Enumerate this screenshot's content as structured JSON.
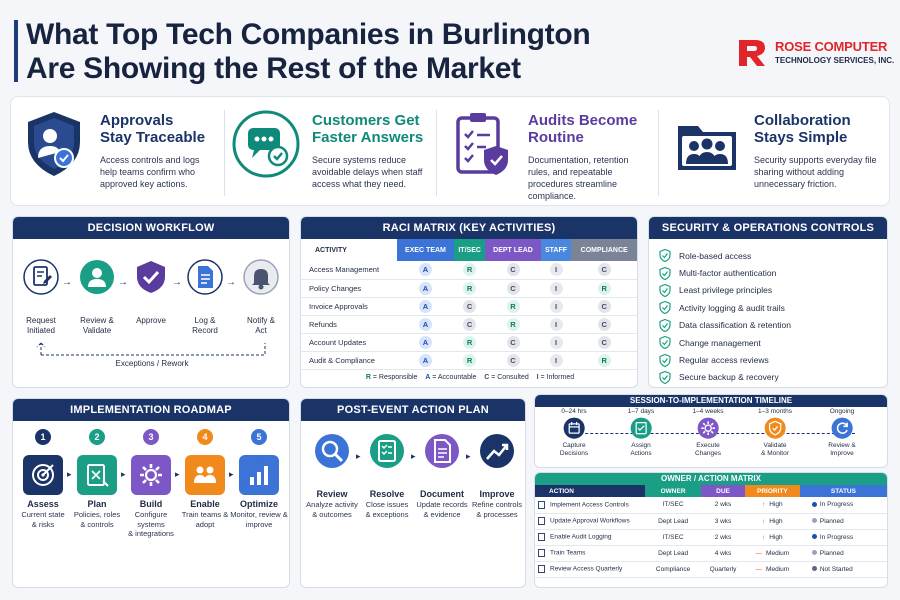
{
  "header": {
    "title_line1": "What Top Tech Companies in Burlington",
    "title_line2": "Are Showing the Rest of the Market",
    "logo_name": "ROSE COMPUTER",
    "logo_sub": "TECHNOLOGY SERVICES, INC."
  },
  "benefits": [
    {
      "title1": "Approvals",
      "title2": "Stay Traceable",
      "body": "Access controls and logs help teams confirm who approved key actions.",
      "color": "#1b3468",
      "icon": "shield-user-icon"
    },
    {
      "title1": "Customers Get",
      "title2": "Faster Answers",
      "body": "Secure systems reduce avoidable delays when staff access what they need.",
      "color": "#0f8a7a",
      "icon": "chat-check-icon"
    },
    {
      "title1": "Audits Become",
      "title2": "Routine",
      "body": "Documentation, retention rules, and repeatable procedures streamline compliance.",
      "color": "#5a3c9e",
      "icon": "clipboard-shield-icon"
    },
    {
      "title1": "Collaboration",
      "title2": "Stays Simple",
      "body": "Security supports everyday file sharing without adding unnecessary friction.",
      "color": "#1b3468",
      "icon": "folder-team-icon"
    }
  ],
  "workflow": {
    "title": "DECISION WORKFLOW",
    "steps": [
      {
        "l1": "Request",
        "l2": "Initiated",
        "icon": "document-edit-icon"
      },
      {
        "l1": "Review &",
        "l2": "Validate",
        "icon": "user-icon"
      },
      {
        "l1": "Approve",
        "l2": "",
        "icon": "shield-check-icon"
      },
      {
        "l1": "Log &",
        "l2": "Record",
        "icon": "document-icon"
      },
      {
        "l1": "Notify &",
        "l2": "Act",
        "icon": "bell-icon"
      }
    ],
    "exceptions": "Exceptions / Rework"
  },
  "raci": {
    "title": "RACI MATRIX (KEY ACTIVITIES)",
    "headers": [
      "ACTIVITY",
      "EXEC TEAM",
      "IT/SEC",
      "DEPT LEAD",
      "STAFF",
      "COMPLIANCE"
    ],
    "header_colors": [
      "#ffffff",
      "#3b73d6",
      "#1a9e86",
      "#7d57c6",
      "#4a88e0",
      "#7b8496"
    ],
    "rows": [
      {
        "activity": "Access Management",
        "cells": [
          "A",
          "R",
          "C",
          "I",
          "C"
        ]
      },
      {
        "activity": "Policy Changes",
        "cells": [
          "A",
          "R",
          "C",
          "I",
          "R"
        ]
      },
      {
        "activity": "Invoice Approvals",
        "cells": [
          "A",
          "C",
          "R",
          "I",
          "C"
        ]
      },
      {
        "activity": "Refunds",
        "cells": [
          "A",
          "C",
          "R",
          "I",
          "C"
        ]
      },
      {
        "activity": "Account Updates",
        "cells": [
          "A",
          "R",
          "C",
          "I",
          "C"
        ]
      },
      {
        "activity": "Audit & Compliance",
        "cells": [
          "A",
          "R",
          "C",
          "I",
          "R"
        ]
      }
    ],
    "legend": [
      {
        "k": "R",
        "v": "= Responsible"
      },
      {
        "k": "A",
        "v": "= Accountable"
      },
      {
        "k": "C",
        "v": "= Consulted"
      },
      {
        "k": "I",
        "v": "= Informed"
      }
    ]
  },
  "controls": {
    "title": "SECURITY & OPERATIONS CONTROLS",
    "items": [
      "Role-based access",
      "Multi-factor authentication",
      "Least privilege principles",
      "Activity logging & audit trails",
      "Data classification & retention",
      "Change management",
      "Regular access reviews",
      "Secure backup & recovery"
    ]
  },
  "roadmap": {
    "title": "IMPLEMENTATION ROADMAP",
    "steps": [
      {
        "n": "1",
        "title": "Assess",
        "l1": "Current state",
        "l2": "& risks",
        "color": "#1b3468",
        "icon": "target-icon"
      },
      {
        "n": "2",
        "title": "Plan",
        "l1": "Policies, roles",
        "l2": "& controls",
        "color": "#1a9e86",
        "icon": "plan-icon"
      },
      {
        "n": "3",
        "title": "Build",
        "l1": "Configure systems",
        "l2": "& integrations",
        "color": "#7d57c6",
        "icon": "gear-icon"
      },
      {
        "n": "4",
        "title": "Enable",
        "l1": "Train teams &",
        "l2": "adopt",
        "color": "#f08a1c",
        "icon": "team-icon"
      },
      {
        "n": "5",
        "title": "Optimize",
        "l1": "Monitor, review &",
        "l2": "improve",
        "color": "#3b73d6",
        "icon": "bar-chart-icon"
      }
    ]
  },
  "action_plan": {
    "title": "POST-EVENT ACTION PLAN",
    "steps": [
      {
        "title": "Review",
        "l1": "Analyze activity",
        "l2": "& outcomes",
        "color": "#3b73d6",
        "icon": "magnifier-icon"
      },
      {
        "title": "Resolve",
        "l1": "Close issues",
        "l2": "& exceptions",
        "color": "#1a9e86",
        "icon": "checklist-icon"
      },
      {
        "title": "Document",
        "l1": "Update records",
        "l2": "& evidence",
        "color": "#7d57c6",
        "icon": "document-icon"
      },
      {
        "title": "Improve",
        "l1": "Refine controls",
        "l2": "& processes",
        "color": "#1b3468",
        "icon": "trend-up-icon"
      }
    ]
  },
  "timeline": {
    "title": "SESSION-TO-IMPLEMENTATION TIMELINE",
    "nodes": [
      {
        "t": "0–24 hrs",
        "l1": "Capture",
        "l2": "Decisions",
        "color": "#1b3468",
        "icon": "calendar-icon"
      },
      {
        "t": "1–7 days",
        "l1": "Assign",
        "l2": "Actions",
        "color": "#1a9e86",
        "icon": "assign-icon"
      },
      {
        "t": "1–4 weeks",
        "l1": "Execute",
        "l2": "Changes",
        "color": "#7d57c6",
        "icon": "gear-icon"
      },
      {
        "t": "1–3 months",
        "l1": "Validate",
        "l2": "& Monitor",
        "color": "#f08a1c",
        "icon": "shield-check-icon"
      },
      {
        "t": "Ongoing",
        "l1": "Review &",
        "l2": "Improve",
        "color": "#3b73d6",
        "icon": "refresh-icon"
      }
    ]
  },
  "owner_matrix": {
    "title": "OWNER / ACTION MATRIX",
    "headers": [
      "ACTION",
      "OWNER",
      "DUE",
      "PRIORITY",
      "STATUS"
    ],
    "header_colors": [
      "#1b3468",
      "#1a9e86",
      "#7d57c6",
      "#f08a1c",
      "#3b73d6"
    ],
    "rows": [
      {
        "action": "Implement Access Controls",
        "owner": "IT/SEC",
        "due": "2 wks",
        "priority": "High",
        "prio_icon": "up-arrow-icon",
        "status": "In Progress",
        "status_color": "#1b4fb0"
      },
      {
        "action": "Update Approval Workflows",
        "owner": "Dept Lead",
        "due": "3 wks",
        "priority": "High",
        "prio_icon": "up-arrow-icon",
        "status": "Planned",
        "status_color": "#9aa3b5"
      },
      {
        "action": "Enable Audit Logging",
        "owner": "IT/SEC",
        "due": "2 wks",
        "priority": "High",
        "prio_icon": "up-arrow-icon",
        "status": "In Progress",
        "status_color": "#1b4fb0"
      },
      {
        "action": "Train Teams",
        "owner": "Dept Lead",
        "due": "4 wks",
        "priority": "Medium",
        "prio_icon": "dash-icon",
        "status": "Planned",
        "status_color": "#9aa3b5"
      },
      {
        "action": "Review Access Quarterly",
        "owner": "Compliance",
        "due": "Quarterly",
        "priority": "Medium",
        "prio_icon": "dash-icon",
        "status": "Not Started",
        "status_color": "#5c6680"
      }
    ]
  }
}
